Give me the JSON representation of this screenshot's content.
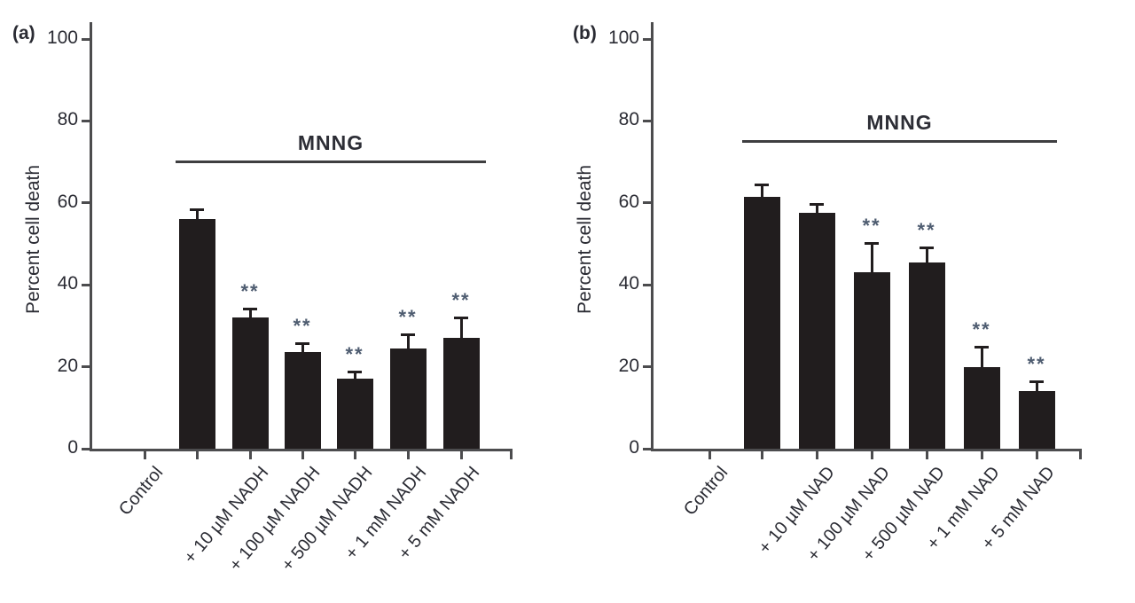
{
  "figure": {
    "background": "#ffffff",
    "bar_color": "#211d1e",
    "axis_color": "#4c4c4e",
    "significance_color": "#4e5c70",
    "significance_marker": "**"
  },
  "chart_data": [
    {
      "type": "bar",
      "panel_label": "(a)",
      "ylabel": "Percent cell death",
      "xlabel": "",
      "ylim": [
        0,
        100
      ],
      "yticks": [
        0,
        20,
        40,
        60,
        80,
        100
      ],
      "grid": false,
      "legend": "none",
      "categories": [
        "Control",
        "",
        "+ 10 µM NADH",
        "+ 100 µM NADH",
        "+ 500 µM NADH",
        "+ 1 mM NADH",
        "+ 5 mM NADH"
      ],
      "values": [
        0,
        56,
        32,
        23.5,
        17,
        24.5,
        27
      ],
      "errors": [
        0,
        2.5,
        2.2,
        2.2,
        1.8,
        3.4,
        5
      ],
      "significance": [
        "",
        "",
        "**",
        "**",
        "**",
        "**",
        "**"
      ],
      "annotation": {
        "text": "MNNG",
        "y": 70,
        "spans": "bar 2 through bar 7"
      }
    },
    {
      "type": "bar",
      "panel_label": "(b)",
      "ylabel": "Percent cell death",
      "xlabel": "",
      "ylim": [
        0,
        100
      ],
      "yticks": [
        0,
        20,
        40,
        60,
        80,
        100
      ],
      "grid": false,
      "legend": "none",
      "categories": [
        "Control",
        "",
        "+ 10 µM NAD",
        "+ 100 µM NAD",
        "+ 500 µM NAD",
        "+ 1 mM NAD",
        "+ 5 mM NAD"
      ],
      "values": [
        0,
        61.5,
        57.5,
        43,
        45.5,
        20,
        14
      ],
      "errors": [
        0,
        3,
        2.3,
        7.3,
        3.7,
        4.8,
        2.5
      ],
      "significance": [
        "",
        "",
        "",
        "**",
        "**",
        "**",
        "**"
      ],
      "annotation": {
        "text": "MNNG",
        "y": 75,
        "spans": "bar 2 through bar 7"
      }
    }
  ]
}
